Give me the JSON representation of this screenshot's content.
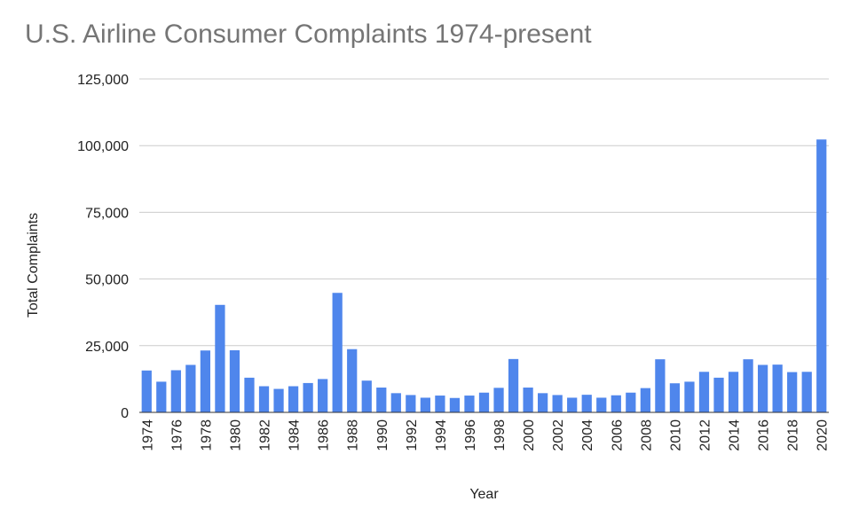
{
  "chart_data": {
    "type": "bar",
    "title": "U.S. Airline Consumer Complaints 1974-present",
    "xlabel": "Year",
    "ylabel": "Total Complaints",
    "ylim": [
      0,
      125000
    ],
    "yticks": [
      0,
      25000,
      50000,
      75000,
      100000,
      125000
    ],
    "ytick_labels": [
      "0",
      "25,000",
      "50,000",
      "75,000",
      "100,000",
      "125,000"
    ],
    "xtick_labels": [
      "1974",
      "1976",
      "1978",
      "1980",
      "1982",
      "1984",
      "1986",
      "1988",
      "1990",
      "1992",
      "1994",
      "1996",
      "1998",
      "2000",
      "2002",
      "2004",
      "2006",
      "2008",
      "2010",
      "2012",
      "2014",
      "2016",
      "2018",
      "2020"
    ],
    "grid": true,
    "bar_color": "#4f86ec",
    "categories": [
      "1974",
      "1975",
      "1976",
      "1977",
      "1978",
      "1979",
      "1980",
      "1981",
      "1982",
      "1983",
      "1984",
      "1985",
      "1986",
      "1987",
      "1988",
      "1989",
      "1990",
      "1991",
      "1992",
      "1993",
      "1994",
      "1995",
      "1996",
      "1997",
      "1998",
      "1999",
      "2000",
      "2001",
      "2002",
      "2003",
      "2004",
      "2005",
      "2006",
      "2007",
      "2008",
      "2009",
      "2010",
      "2011",
      "2012",
      "2013",
      "2014",
      "2015",
      "2016",
      "2017",
      "2018",
      "2019",
      "2020"
    ],
    "values": [
      15700,
      11500,
      15800,
      17800,
      23200,
      40300,
      23300,
      13000,
      9800,
      8800,
      9800,
      11000,
      12500,
      44800,
      23700,
      11900,
      9300,
      7200,
      6500,
      5500,
      6300,
      5400,
      6300,
      7400,
      9200,
      20000,
      9300,
      7200,
      6500,
      5500,
      6600,
      5500,
      6400,
      7400,
      9100,
      19900,
      10900,
      11500,
      15200,
      13000,
      15200,
      19900,
      17800,
      17900,
      15100,
      15200,
      102300
    ]
  }
}
